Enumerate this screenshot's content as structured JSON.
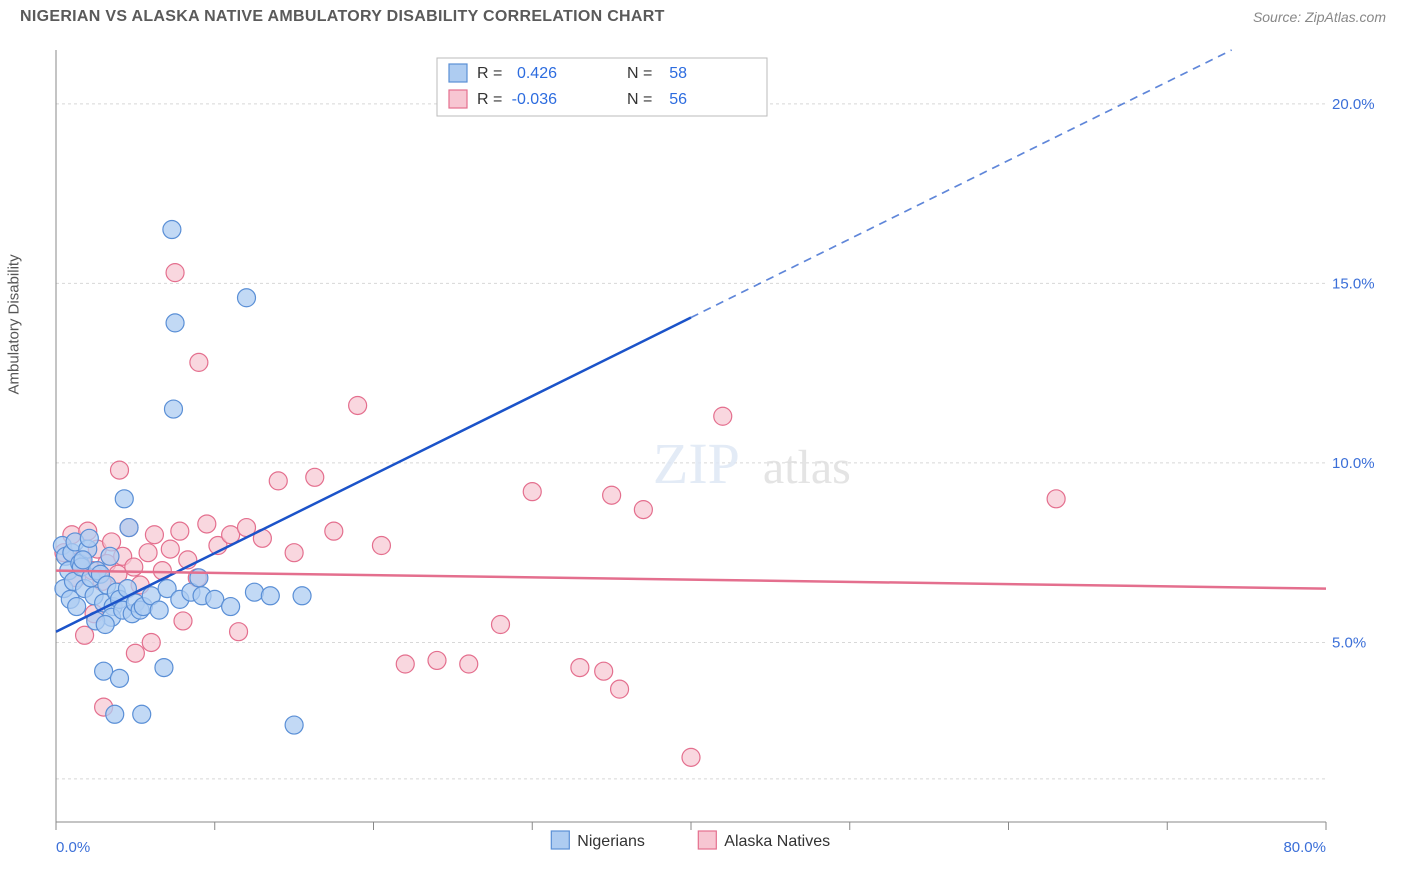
{
  "header": {
    "title": "NIGERIAN VS ALASKA NATIVE AMBULATORY DISABILITY CORRELATION CHART",
    "source": "Source: ZipAtlas.com"
  },
  "chart": {
    "type": "scatter",
    "y_axis_label": "Ambulatory Disability",
    "background_color": "#ffffff",
    "grid_color": "#d8d8d8",
    "axis_color": "#888888",
    "label_color": "#3b6fd8",
    "x_range": [
      0,
      80
    ],
    "y_range": [
      0,
      21.5
    ],
    "x_ticks": [
      0,
      10,
      20,
      30,
      40,
      50,
      60,
      70,
      80
    ],
    "x_tick_labels": {
      "0": "0.0%",
      "80": "80.0%"
    },
    "y_gridlines": [
      1.2,
      5,
      10,
      15,
      20
    ],
    "y_tick_labels": {
      "5": "5.0%",
      "10": "10.0%",
      "15": "15.0%",
      "20": "20.0%"
    },
    "watermark": {
      "text1": "ZIP",
      "text2": "atlas"
    },
    "series": [
      {
        "name": "Nigerians",
        "marker_fill": "#aeccf1",
        "marker_stroke": "#5a8fd6",
        "marker_radius": 9,
        "marker_opacity": 0.75,
        "trend": {
          "color": "#1b53c9",
          "width": 2.5,
          "x1": 0,
          "y1": 5.3,
          "x2": 80,
          "y2": 22.8,
          "solid_until_x": 40
        },
        "stats": {
          "R": "0.426",
          "N": "58"
        },
        "points": [
          [
            0.4,
            7.7
          ],
          [
            0.6,
            7.4
          ],
          [
            0.5,
            6.5
          ],
          [
            0.8,
            7.0
          ],
          [
            1.0,
            7.5
          ],
          [
            0.9,
            6.2
          ],
          [
            1.2,
            7.8
          ],
          [
            1.1,
            6.7
          ],
          [
            1.5,
            7.2
          ],
          [
            1.3,
            6.0
          ],
          [
            1.6,
            7.1
          ],
          [
            1.8,
            6.5
          ],
          [
            2.0,
            7.6
          ],
          [
            1.7,
            7.3
          ],
          [
            2.2,
            6.8
          ],
          [
            2.4,
            6.3
          ],
          [
            2.6,
            7.0
          ],
          [
            2.8,
            6.9
          ],
          [
            2.1,
            7.9
          ],
          [
            3.0,
            6.1
          ],
          [
            3.2,
            6.6
          ],
          [
            3.4,
            7.4
          ],
          [
            3.6,
            6.0
          ],
          [
            3.8,
            6.4
          ],
          [
            3.5,
            5.7
          ],
          [
            4.0,
            6.2
          ],
          [
            4.2,
            5.9
          ],
          [
            4.5,
            6.5
          ],
          [
            4.8,
            5.8
          ],
          [
            5.0,
            6.1
          ],
          [
            5.3,
            5.9
          ],
          [
            2.5,
            5.6
          ],
          [
            3.1,
            5.5
          ],
          [
            4.3,
            9.0
          ],
          [
            5.5,
            6.0
          ],
          [
            6.0,
            6.3
          ],
          [
            6.5,
            5.9
          ],
          [
            7.0,
            6.5
          ],
          [
            7.8,
            6.2
          ],
          [
            8.5,
            6.4
          ],
          [
            9.2,
            6.3
          ],
          [
            10.0,
            6.2
          ],
          [
            11.0,
            6.0
          ],
          [
            12.5,
            6.4
          ],
          [
            13.5,
            6.3
          ],
          [
            15.5,
            6.3
          ],
          [
            3.7,
            3.0
          ],
          [
            3.0,
            4.2
          ],
          [
            4.0,
            4.0
          ],
          [
            6.8,
            4.3
          ],
          [
            7.5,
            13.9
          ],
          [
            7.3,
            16.5
          ],
          [
            7.4,
            11.5
          ],
          [
            12.0,
            14.6
          ],
          [
            15.0,
            2.7
          ],
          [
            5.4,
            3.0
          ],
          [
            4.6,
            8.2
          ],
          [
            9.0,
            6.8
          ]
        ]
      },
      {
        "name": "Alaska Natives",
        "marker_fill": "#f7c6d2",
        "marker_stroke": "#e46f8e",
        "marker_radius": 9,
        "marker_opacity": 0.7,
        "trend": {
          "color": "#e46f8e",
          "width": 2.5,
          "x1": 0,
          "y1": 7.0,
          "x2": 80,
          "y2": 6.5,
          "solid_until_x": 80
        },
        "stats": {
          "R": "-0.036",
          "N": "56"
        },
        "points": [
          [
            0.5,
            7.5
          ],
          [
            1.0,
            8.0
          ],
          [
            1.3,
            6.8
          ],
          [
            1.6,
            7.3
          ],
          [
            2.0,
            8.1
          ],
          [
            2.3,
            7.0
          ],
          [
            2.6,
            7.6
          ],
          [
            2.9,
            6.7
          ],
          [
            3.2,
            7.2
          ],
          [
            3.5,
            7.8
          ],
          [
            3.9,
            6.9
          ],
          [
            4.2,
            7.4
          ],
          [
            4.6,
            8.2
          ],
          [
            4.9,
            7.1
          ],
          [
            5.3,
            6.6
          ],
          [
            5.8,
            7.5
          ],
          [
            6.2,
            8.0
          ],
          [
            6.7,
            7.0
          ],
          [
            7.2,
            7.6
          ],
          [
            7.8,
            8.1
          ],
          [
            8.3,
            7.3
          ],
          [
            8.9,
            6.8
          ],
          [
            9.5,
            8.3
          ],
          [
            10.2,
            7.7
          ],
          [
            11.0,
            8.0
          ],
          [
            12.0,
            8.2
          ],
          [
            13.0,
            7.9
          ],
          [
            14.0,
            9.5
          ],
          [
            15.0,
            7.5
          ],
          [
            16.3,
            9.6
          ],
          [
            17.5,
            8.1
          ],
          [
            19.0,
            11.6
          ],
          [
            20.5,
            7.7
          ],
          [
            22.0,
            4.4
          ],
          [
            24.0,
            4.5
          ],
          [
            26.0,
            4.4
          ],
          [
            28.0,
            5.5
          ],
          [
            30.0,
            9.2
          ],
          [
            33.0,
            4.3
          ],
          [
            35.0,
            9.1
          ],
          [
            37.0,
            8.7
          ],
          [
            40.0,
            1.8
          ],
          [
            42.0,
            11.3
          ],
          [
            34.5,
            4.2
          ],
          [
            35.5,
            3.7
          ],
          [
            63.0,
            9.0
          ],
          [
            4.0,
            9.8
          ],
          [
            9.0,
            12.8
          ],
          [
            5.0,
            4.7
          ],
          [
            6.0,
            5.0
          ],
          [
            8.0,
            5.6
          ],
          [
            11.5,
            5.3
          ],
          [
            3.0,
            3.2
          ],
          [
            7.5,
            15.3
          ],
          [
            1.8,
            5.2
          ],
          [
            2.4,
            5.8
          ]
        ]
      }
    ],
    "top_legend": {
      "R_label": "R =",
      "N_label": "N ="
    },
    "bottom_legend_labels": [
      "Nigerians",
      "Alaska Natives"
    ]
  }
}
